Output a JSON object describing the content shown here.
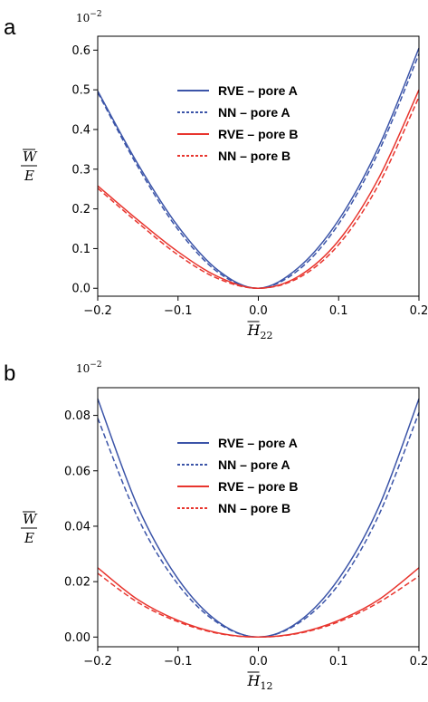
{
  "chart_data": [
    {
      "panel_label": "a",
      "type": "line",
      "multiplier": "10",
      "multiplier_exp": "−2",
      "xlabel_symbol": "H",
      "xlabel_sub": "22",
      "ylabel_top": "W",
      "ylabel_bottom": "E",
      "xlim": [
        -0.2,
        0.2
      ],
      "ylim": [
        -0.02,
        0.635
      ],
      "xticks": [
        -0.2,
        -0.1,
        0.0,
        0.1,
        0.2
      ],
      "xtick_labels": [
        "−0.2",
        "−0.1",
        "0.0",
        "0.1",
        "0.2"
      ],
      "yticks": [
        0.0,
        0.1,
        0.2,
        0.3,
        0.4,
        0.5,
        0.6
      ],
      "ytick_labels": [
        "0.0",
        "0.1",
        "0.2",
        "0.3",
        "0.4",
        "0.5",
        "0.6"
      ],
      "legend_position": "upper-center",
      "series": [
        {
          "name": "RVE – pore A",
          "color": "#3b54a8",
          "style": "solid",
          "x": [
            -0.2,
            -0.15,
            -0.1,
            -0.05,
            0.0,
            0.05,
            0.1,
            0.15,
            0.2
          ],
          "y": [
            0.497,
            0.313,
            0.156,
            0.045,
            0.0,
            0.052,
            0.172,
            0.357,
            0.605
          ]
        },
        {
          "name": "NN – pore A",
          "color": "#3b54a8",
          "style": "dashed",
          "x": [
            -0.2,
            -0.15,
            -0.1,
            -0.05,
            0.0,
            0.05,
            0.1,
            0.15,
            0.2
          ],
          "y": [
            0.493,
            0.306,
            0.148,
            0.04,
            0.0,
            0.046,
            0.162,
            0.345,
            0.59
          ]
        },
        {
          "name": "RVE – pore B",
          "color": "#e8352e",
          "style": "solid",
          "x": [
            -0.2,
            -0.15,
            -0.1,
            -0.05,
            0.0,
            0.05,
            0.1,
            0.15,
            0.2
          ],
          "y": [
            0.258,
            0.172,
            0.092,
            0.029,
            0.0,
            0.03,
            0.12,
            0.278,
            0.5
          ]
        },
        {
          "name": "NN – pore B",
          "color": "#e8352e",
          "style": "dashed",
          "x": [
            -0.2,
            -0.15,
            -0.1,
            -0.05,
            0.0,
            0.05,
            0.1,
            0.15,
            0.2
          ],
          "y": [
            0.252,
            0.165,
            0.084,
            0.024,
            0.0,
            0.026,
            0.11,
            0.262,
            0.482
          ]
        }
      ]
    },
    {
      "panel_label": "b",
      "type": "line",
      "multiplier": "10",
      "multiplier_exp": "−2",
      "xlabel_symbol": "H",
      "xlabel_sub": "12",
      "ylabel_top": "W",
      "ylabel_bottom": "E",
      "xlim": [
        -0.2,
        0.2
      ],
      "ylim": [
        -0.0035,
        0.09
      ],
      "xticks": [
        -0.2,
        -0.1,
        0.0,
        0.1,
        0.2
      ],
      "xtick_labels": [
        "−0.2",
        "−0.1",
        "0.0",
        "0.1",
        "0.2"
      ],
      "yticks": [
        0.0,
        0.02,
        0.04,
        0.06,
        0.08
      ],
      "ytick_labels": [
        "0.00",
        "0.02",
        "0.04",
        "0.06",
        "0.08"
      ],
      "legend_position": "upper-center",
      "series": [
        {
          "name": "RVE – pore A",
          "color": "#3b54a8",
          "style": "solid",
          "x": [
            -0.2,
            -0.15,
            -0.1,
            -0.05,
            0.0,
            0.05,
            0.1,
            0.15,
            0.2
          ],
          "y": [
            0.086,
            0.047,
            0.021,
            0.0055,
            0.0,
            0.0055,
            0.021,
            0.047,
            0.086
          ]
        },
        {
          "name": "NN – pore A",
          "color": "#3b54a8",
          "style": "dashed",
          "x": [
            -0.2,
            -0.15,
            -0.1,
            -0.05,
            0.0,
            0.05,
            0.1,
            0.15,
            0.2
          ],
          "y": [
            0.079,
            0.043,
            0.019,
            0.005,
            0.0,
            0.005,
            0.019,
            0.044,
            0.081
          ]
        },
        {
          "name": "RVE – pore B",
          "color": "#e8352e",
          "style": "solid",
          "x": [
            -0.2,
            -0.15,
            -0.1,
            -0.05,
            0.0,
            0.05,
            0.1,
            0.15,
            0.2
          ],
          "y": [
            0.025,
            0.0135,
            0.006,
            0.0015,
            0.0,
            0.0015,
            0.006,
            0.0135,
            0.025
          ]
        },
        {
          "name": "NN – pore B",
          "color": "#e8352e",
          "style": "dashed",
          "x": [
            -0.2,
            -0.15,
            -0.1,
            -0.05,
            0.0,
            0.05,
            0.1,
            0.15,
            0.2
          ],
          "y": [
            0.023,
            0.0125,
            0.0055,
            0.0013,
            0.0,
            0.0013,
            0.0055,
            0.0125,
            0.022
          ]
        }
      ]
    }
  ]
}
